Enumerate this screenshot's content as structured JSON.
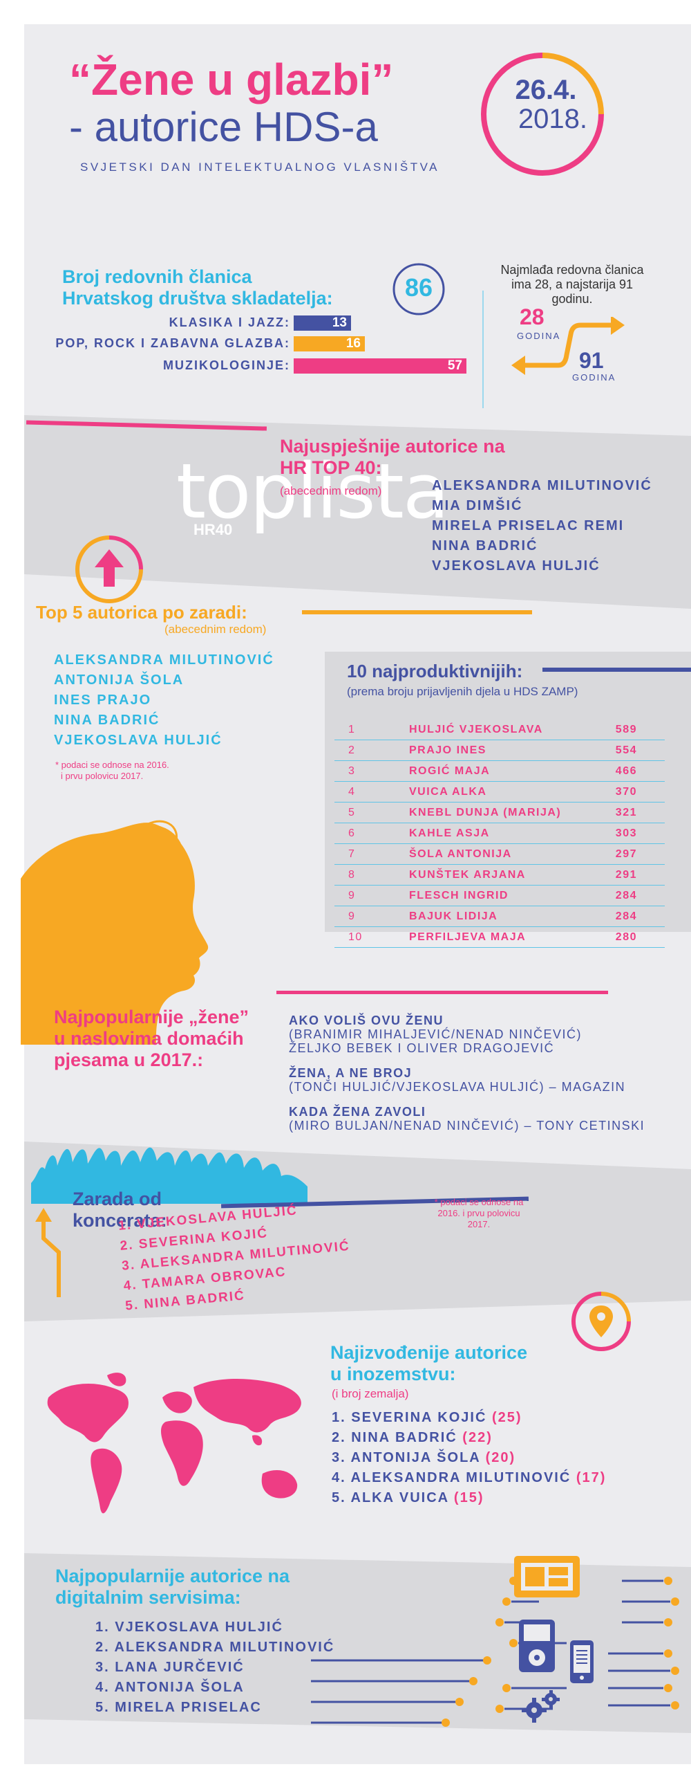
{
  "header": {
    "title_line1": "“Žene u glazbi”",
    "title_line2": "- autorice HDS-a",
    "subtitle": "SVJETSKI DAN INTELEKTUALNOG VLASNIŠTVA",
    "date_line1": "26.4.",
    "date_line2": "2018."
  },
  "members": {
    "heading_line1": "Broj redovnih članica",
    "heading_line2": "Hrvatskog društva skladatelja:",
    "total": "86",
    "bars": [
      {
        "label": "KLASIKA I JAZZ:",
        "value": 13,
        "color": "#4452a2"
      },
      {
        "label": "POP, ROCK I ZABAVNA GLAZBA:",
        "value": 16,
        "color": "#f7a823"
      },
      {
        "label": "MUZIKOLOGINJE:",
        "value": 57,
        "color": "#ee3d84"
      }
    ]
  },
  "ages": {
    "note": "Najmlađa redovna članica ima 28, a najstarija 91 godinu.",
    "young_value": "28",
    "young_unit": "GODINA",
    "old_value": "91",
    "old_unit": "GODINA"
  },
  "top40": {
    "heading_line1": "Najuspješnije autorice na",
    "heading_line2": "HR TOP 40:",
    "note": "(abecednim redom)",
    "logo_text": "toplista",
    "logo_sub": "HR40",
    "names": [
      "ALEKSANDRA MILUTINOVIĆ",
      "MIA DIMŠIĆ",
      "MIRELA PRISELAC REMI",
      "NINA BADRIĆ",
      "VJEKOSLAVA HULJIĆ"
    ]
  },
  "earnings": {
    "heading": "Top 5 autorica po zaradi:",
    "note": "(abecednim redom)",
    "names": [
      "ALEKSANDRA MILUTINOVIĆ",
      "ANTONIJA ŠOLA",
      "INES PRAJO",
      "NINA BADRIĆ",
      "VJEKOSLAVA HULJIĆ"
    ],
    "footnote_line1": "* podaci se odnose na 2016.",
    "footnote_line2": "i prvu polovicu 2017."
  },
  "productive": {
    "heading": "10 najproduktivnijih:",
    "note": "(prema broju prijavljenih djela u HDS ZAMP)",
    "rows": [
      {
        "rank": "1",
        "name": "HULJIĆ VJEKOSLAVA",
        "count": "589"
      },
      {
        "rank": "2",
        "name": "PRAJO INES",
        "count": "554"
      },
      {
        "rank": "3",
        "name": "ROGIĆ MAJA",
        "count": "466"
      },
      {
        "rank": "4",
        "name": "VUICA ALKA",
        "count": "370"
      },
      {
        "rank": "5",
        "name": "KNEBL DUNJA (MARIJA)",
        "count": "321"
      },
      {
        "rank": "6",
        "name": "KAHLE ASJA",
        "count": "303"
      },
      {
        "rank": "7",
        "name": "ŠOLA ANTONIJA",
        "count": "297"
      },
      {
        "rank": "8",
        "name": "KUNŠTEK ARJANA",
        "count": "291"
      },
      {
        "rank": "9",
        "name": "FLESCH INGRID",
        "count": "284"
      },
      {
        "rank": "9",
        "name": "BAJUK LIDIJA",
        "count": "284"
      },
      {
        "rank": "10",
        "name": "PERFILJEVA MAJA",
        "count": "280"
      }
    ]
  },
  "songs": {
    "heading_line1": "Najpopularnije „žene”",
    "heading_line2": "u naslovima domaćih",
    "heading_line3": "pjesama u 2017.:",
    "items": [
      {
        "line1": "AKO VOLIŠ OVU ŽENU",
        "line2": "(BRANIMIR MIHALJEVIĆ/NENAD NINČEVIĆ)",
        "line3": "ŽELJKO BEBEK I OLIVER DRAGOJEVIĆ"
      },
      {
        "line1": "ŽENA, A NE BROJ",
        "line2": "(TONČI HULJIĆ/VJEKOSLAVA HULJIĆ) – MAGAZIN"
      },
      {
        "line1": "KADA ŽENA ZAVOLI",
        "line2": "(MIRO BULJAN/NENAD NINČEVIĆ) – TONY CETINSKI"
      }
    ]
  },
  "concerts": {
    "heading_line1": "Zarada od",
    "heading_line2": "koncerata:",
    "names": [
      "1. VJEKOSLAVA HULJIĆ",
      "2. SEVERINA KOJIĆ",
      "3. ALEKSANDRA MILUTINOVIĆ",
      "4. TAMARA OBROVAC",
      "5. NINA BADRIĆ"
    ],
    "footnote": "* podaci se odnose na 2016. i prvu polovicu 2017."
  },
  "abroad": {
    "heading_line1": "Najizvođenije autorice",
    "heading_line2": "u inozemstvu:",
    "note": "(i broj zemalja)",
    "items": [
      {
        "name": "1. SEVERINA KOJIĆ",
        "count": "(25)"
      },
      {
        "name": "2. NINA BADRIĆ",
        "count": "(22)"
      },
      {
        "name": "3. ANTONIJA ŠOLA",
        "count": "(20)"
      },
      {
        "name": "4. ALEKSANDRA MILUTINOVIĆ",
        "count": "(17)"
      },
      {
        "name": "5. ALKA VUICA",
        "count": "(15)"
      }
    ]
  },
  "digital": {
    "heading_line1": "Najpopularnije autorice na",
    "heading_line2": "digitalnim servisima:",
    "names": [
      "1. VJEKOSLAVA HULJIĆ",
      "2. ALEKSANDRA MILUTINOVIĆ",
      "3. LANA JURČEVIĆ",
      "4. ANTONIJA ŠOLA",
      "5. MIRELA PRISELAC"
    ]
  },
  "colors": {
    "pink": "#ee3d84",
    "navy": "#4452a2",
    "cyan": "#31b8e1",
    "orange": "#f7a823",
    "grey": "#ececef"
  }
}
